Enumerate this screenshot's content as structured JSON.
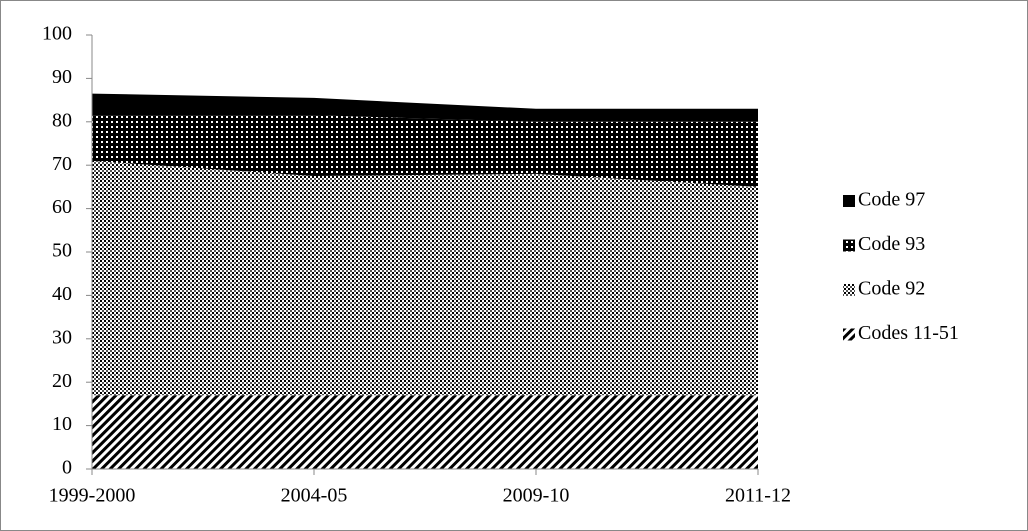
{
  "chart_data": {
    "type": "stacked_area",
    "categories": [
      "1999-2000",
      "2004-05",
      "2009-10",
      "2011-12"
    ],
    "series": [
      {
        "name": "Codes 11-51",
        "color": "#000000",
        "values": [
          17,
          17,
          17,
          17
        ]
      },
      {
        "name": "Code 92",
        "color": "#000000",
        "values": [
          54,
          50.5,
          51,
          48
        ]
      },
      {
        "name": "Code 93",
        "color": "#000000",
        "values": [
          10.5,
          14,
          12,
          15
        ]
      },
      {
        "name": "Code 97",
        "color": "#000000",
        "values": [
          5,
          4,
          3,
          3
        ]
      }
    ],
    "ylim": [
      0,
      100
    ],
    "yticks": [
      0,
      10,
      20,
      30,
      40,
      50,
      60,
      70,
      80,
      90,
      100
    ],
    "grid": false,
    "legend": "right"
  }
}
